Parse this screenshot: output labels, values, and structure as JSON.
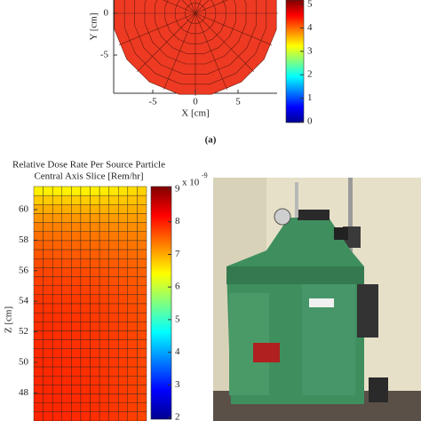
{
  "panel_a": {
    "y_label": "Y [cm]",
    "x_label": "X [cm]",
    "x_ticks": [
      -5,
      0,
      5
    ],
    "y_ticks": [
      0,
      -5
    ],
    "colorbar_ticks": [
      5,
      4,
      3,
      2,
      1,
      0
    ],
    "caption": "(a)"
  },
  "panel_b": {
    "title_lines": [
      "Relative Dose Rate Per Source Particle",
      "Central Axis Slice [Rem/hr]"
    ],
    "y_label": "Z [cm]",
    "y_ticks": [
      60,
      58,
      56,
      54,
      52,
      50,
      48
    ],
    "colorbar_ticks": [
      9,
      8,
      7,
      6,
      5,
      4,
      3,
      2
    ],
    "colorbar_scale": "x 10",
    "colorbar_exponent": "-9"
  }
}
